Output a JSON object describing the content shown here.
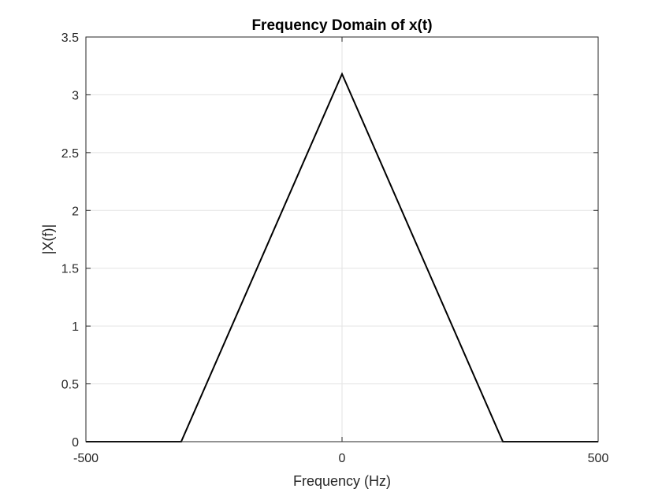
{
  "chart_data": {
    "type": "line",
    "title": "Frequency Domain of x(t)",
    "xlabel": "Frequency (Hz)",
    "ylabel": "|X(f)|",
    "xlim": [
      -500,
      500
    ],
    "ylim": [
      0,
      3.5
    ],
    "xticks": [
      -500,
      0,
      500
    ],
    "xtick_labels": [
      "-500",
      "0",
      "500"
    ],
    "yticks": [
      0,
      0.5,
      1,
      1.5,
      2,
      2.5,
      3,
      3.5
    ],
    "ytick_labels": [
      "0",
      "0.5",
      "1",
      "1.5",
      "2",
      "2.5",
      "3",
      "3.5"
    ],
    "grid": true,
    "legend": "none",
    "series": [
      {
        "color": "#000000",
        "x": [
          -500,
          -314,
          0,
          314,
          500
        ],
        "y": [
          0,
          0,
          3.18,
          0,
          0
        ]
      }
    ]
  }
}
